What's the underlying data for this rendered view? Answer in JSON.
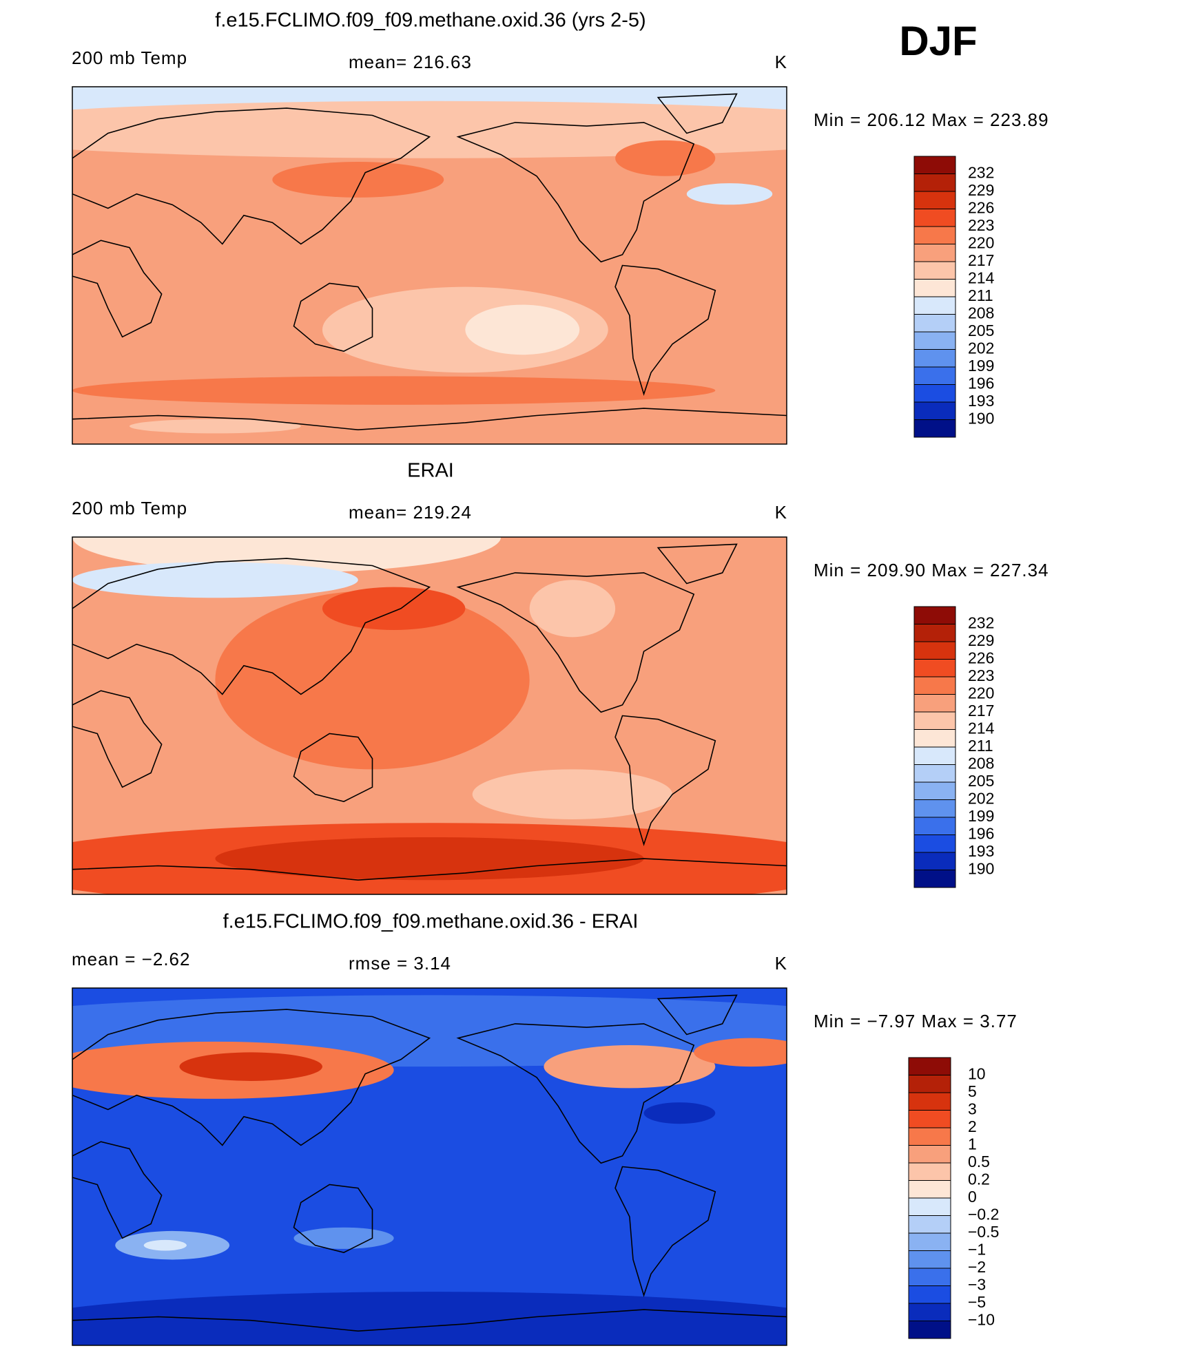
{
  "season": "DJF",
  "panels": [
    {
      "title": "f.e15.FCLIMO.f09_f09.methane.oxid.36 (yrs 2-5)",
      "left_label": "200 mb Temp",
      "center_label": "mean=  216.63",
      "units": "K",
      "range_label": "Min  =  206.12  Max  =  223.89",
      "colorbar": {
        "labels": [
          "232",
          "229",
          "226",
          "223",
          "220",
          "217",
          "214",
          "211",
          "208",
          "205",
          "202",
          "199",
          "196",
          "193",
          "190"
        ],
        "colors": [
          "#8e0c06",
          "#b42108",
          "#d7330e",
          "#f04c22",
          "#f7784a",
          "#f8a07c",
          "#fcc5aa",
          "#fde6d6",
          "#d8e8fb",
          "#b4cff7",
          "#8ab2f2",
          "#5f92ee",
          "#3a70eb",
          "#1b4de2",
          "#0a2cbc",
          "#001088"
        ]
      }
    },
    {
      "title": "ERAI",
      "left_label": "200 mb Temp",
      "center_label": "mean=  219.24",
      "units": "K",
      "range_label": "Min  =  209.90  Max  =  227.34",
      "colorbar": {
        "labels": [
          "232",
          "229",
          "226",
          "223",
          "220",
          "217",
          "214",
          "211",
          "208",
          "205",
          "202",
          "199",
          "196",
          "193",
          "190"
        ],
        "colors": [
          "#8e0c06",
          "#b42108",
          "#d7330e",
          "#f04c22",
          "#f7784a",
          "#f8a07c",
          "#fcc5aa",
          "#fde6d6",
          "#d8e8fb",
          "#b4cff7",
          "#8ab2f2",
          "#5f92ee",
          "#3a70eb",
          "#1b4de2",
          "#0a2cbc",
          "#001088"
        ]
      }
    },
    {
      "title": "f.e15.FCLIMO.f09_f09.methane.oxid.36 - ERAI",
      "left_label": "mean =   −2.62",
      "center_label": "rmse =    3.14",
      "units": "K",
      "range_label": "Min  =   −7.97  Max  =     3.77",
      "colorbar": {
        "labels": [
          "10",
          "5",
          "3",
          "2",
          "1",
          "0.5",
          "0.2",
          "0",
          "−0.2",
          "−0.5",
          "−1",
          "−2",
          "−3",
          "−5",
          "−10"
        ],
        "colors": [
          "#8e0c06",
          "#b42108",
          "#d7330e",
          "#f04c22",
          "#f7784a",
          "#f8a07c",
          "#fcc5aa",
          "#fde6d6",
          "#d8e8fb",
          "#b4cff7",
          "#8ab2f2",
          "#5f92ee",
          "#3a70eb",
          "#1b4de2",
          "#0a2cbc",
          "#001088"
        ]
      }
    }
  ]
}
